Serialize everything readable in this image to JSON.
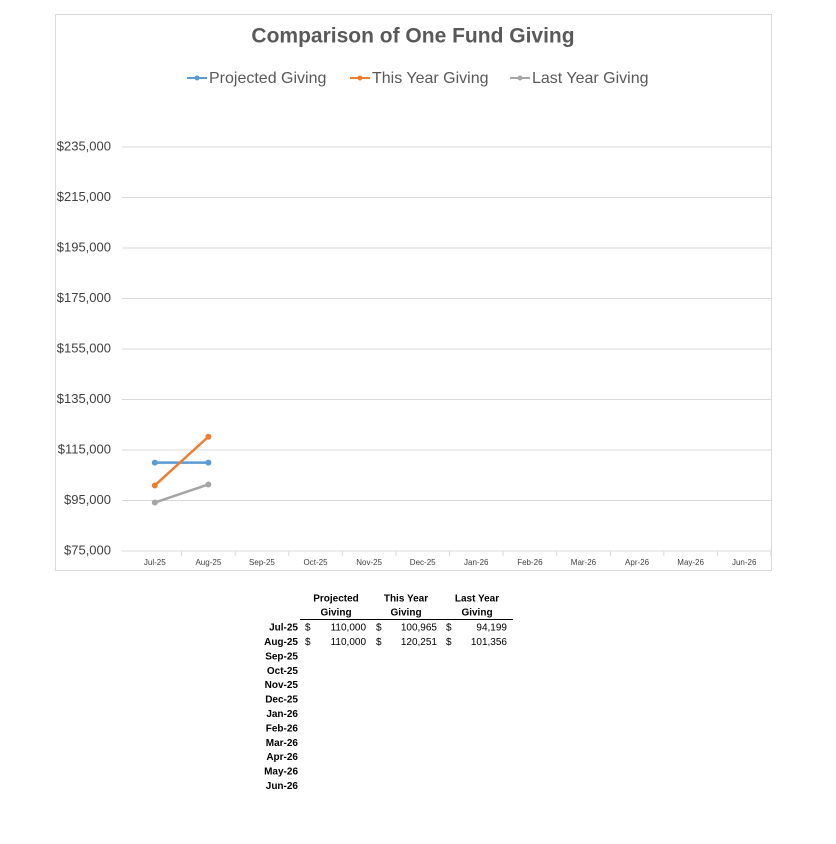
{
  "chart_data": {
    "type": "line",
    "title": "Comparison of One Fund Giving",
    "categories": [
      "Jul-25",
      "Aug-25",
      "Sep-25",
      "Oct-25",
      "Nov-25",
      "Dec-25",
      "Jan-26",
      "Feb-26",
      "Mar-26",
      "Apr-26",
      "May-26",
      "Jun-26"
    ],
    "series": [
      {
        "name": "Projected Giving",
        "color": "#5b9bd5",
        "values": [
          110000,
          110000,
          null,
          null,
          null,
          null,
          null,
          null,
          null,
          null,
          null,
          null
        ]
      },
      {
        "name": "This Year Giving",
        "color": "#ed7d31",
        "values": [
          100965,
          120251,
          null,
          null,
          null,
          null,
          null,
          null,
          null,
          null,
          null,
          null
        ]
      },
      {
        "name": "Last Year Giving",
        "color": "#a5a5a5",
        "values": [
          94199,
          101356,
          null,
          null,
          null,
          null,
          null,
          null,
          null,
          null,
          null,
          null
        ]
      }
    ],
    "ylim": [
      75000,
      235000
    ],
    "yticks": [
      {
        "value": 75000,
        "label": "$75,000"
      },
      {
        "value": 95000,
        "label": "$95,000"
      },
      {
        "value": 115000,
        "label": "$115,000"
      },
      {
        "value": 135000,
        "label": "$135,000"
      },
      {
        "value": 155000,
        "label": "$155,000"
      },
      {
        "value": 175000,
        "label": "$175,000"
      },
      {
        "value": 195000,
        "label": "$195,000"
      },
      {
        "value": 215000,
        "label": "$215,000"
      },
      {
        "value": 235000,
        "label": "$235,000"
      }
    ],
    "grid": true,
    "legend": "top"
  },
  "table": {
    "columns": [
      [
        "Projected",
        "Giving"
      ],
      [
        "This Year",
        "Giving"
      ],
      [
        "Last Year",
        "Giving"
      ]
    ],
    "rows": [
      [
        "Jul-25",
        "$",
        "110,000",
        "$",
        "100,965",
        "$",
        "94,199"
      ],
      [
        "Aug-25",
        "$",
        "110,000",
        "$",
        "120,251",
        "$",
        "101,356"
      ],
      [
        "Sep-25"
      ],
      [
        "Oct-25"
      ],
      [
        "Nov-25"
      ],
      [
        "Dec-25"
      ],
      [
        "Jan-26"
      ],
      [
        "Feb-26"
      ],
      [
        "Mar-26"
      ],
      [
        "Apr-26"
      ],
      [
        "May-26"
      ],
      [
        "Jun-26"
      ]
    ]
  }
}
